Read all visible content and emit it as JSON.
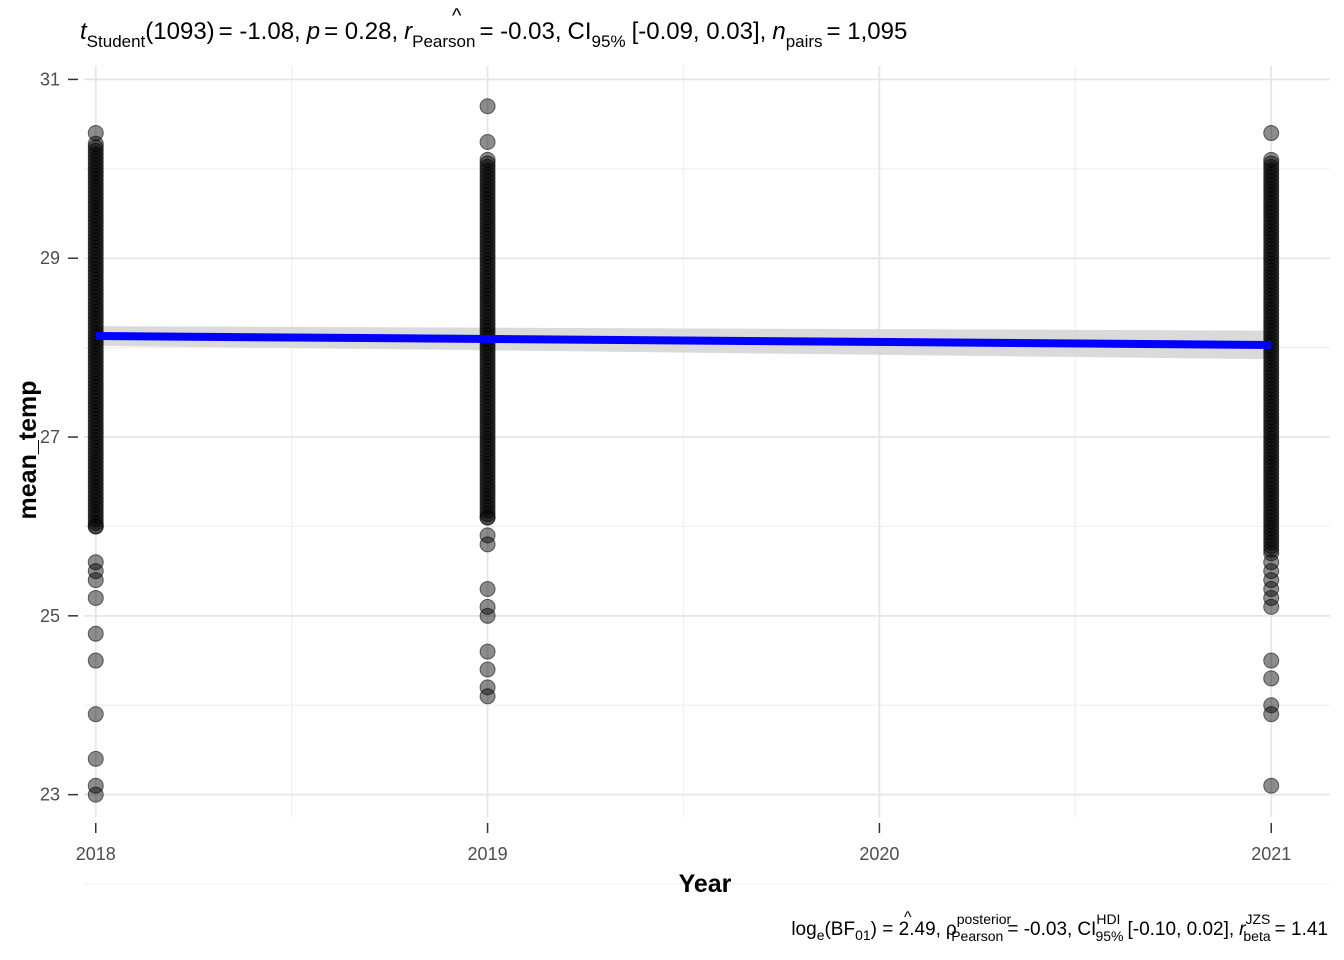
{
  "chart_data": {
    "type": "scatter",
    "title": {
      "t_symbol": "t",
      "t_sub": "Student",
      "df": "(1093)",
      "t_value": "= -1.08,",
      "p_symbol": "p",
      "p_value": "= 0.28,",
      "r_symbol": "r",
      "r_sub": "Pearson",
      "r_value": "= -0.03,",
      "ci_label": "CI",
      "ci_sub": "95%",
      "ci_value": "[-0.09, 0.03],",
      "n_symbol": "n",
      "n_sub": "pairs",
      "n_value": "= 1,095"
    },
    "caption": {
      "bf_label": "log",
      "bf_sub_e": "e",
      "bf_paren_open": "(BF",
      "bf_sub": "01",
      "bf_value": ") = 2.49,",
      "rho_symbol": "ρ",
      "rho_sup": "posterior",
      "rho_sub": "Pearson",
      "rho_value": "= -0.03,",
      "ci_label": "CI",
      "ci_sup": "HDI",
      "ci_sub": "95%",
      "ci_value": "[-0.10, 0.02],",
      "r_symbol": "r",
      "r_sup": "JZS",
      "r_sub": "beta",
      "r_value": "= 1.41"
    },
    "xlabel": "Year",
    "ylabel": "mean_temp",
    "xlim": [
      2017.97,
      2021.15
    ],
    "ylim": [
      22.75,
      31.15
    ],
    "x_ticks": [
      "2018",
      "2019",
      "2020",
      "2021"
    ],
    "y_ticks": [
      "23",
      "25",
      "27",
      "29",
      "31"
    ],
    "grid": true,
    "point_color": "#000000",
    "point_opacity": 0.45,
    "line_color": "#0000ff",
    "ribbon_color": "#d3d3d3",
    "series": [
      {
        "x": 2018,
        "dense_range": [
          26.0,
          30.3
        ],
        "outliers": [
          30.4,
          26.0,
          25.6,
          25.5,
          25.4,
          25.2,
          24.8,
          24.5,
          23.9,
          23.4,
          23.1,
          23.0
        ]
      },
      {
        "x": 2019,
        "dense_range": [
          26.1,
          30.1
        ],
        "outliers": [
          30.7,
          30.3,
          26.1,
          25.9,
          25.8,
          25.3,
          25.1,
          25.0,
          24.6,
          24.4,
          24.2,
          24.1
        ]
      },
      {
        "x": 2021,
        "dense_range": [
          25.7,
          30.1
        ],
        "outliers": [
          30.4,
          25.6,
          25.5,
          25.4,
          25.3,
          25.2,
          25.1,
          24.5,
          24.3,
          24.0,
          23.9,
          23.1
        ]
      }
    ],
    "fit_line": {
      "x": [
        2018,
        2021
      ],
      "y": [
        28.13,
        28.03
      ]
    },
    "ci_band": {
      "x": [
        2018,
        2021
      ],
      "lower": [
        28.02,
        27.87
      ],
      "upper": [
        28.24,
        28.19
      ]
    }
  }
}
